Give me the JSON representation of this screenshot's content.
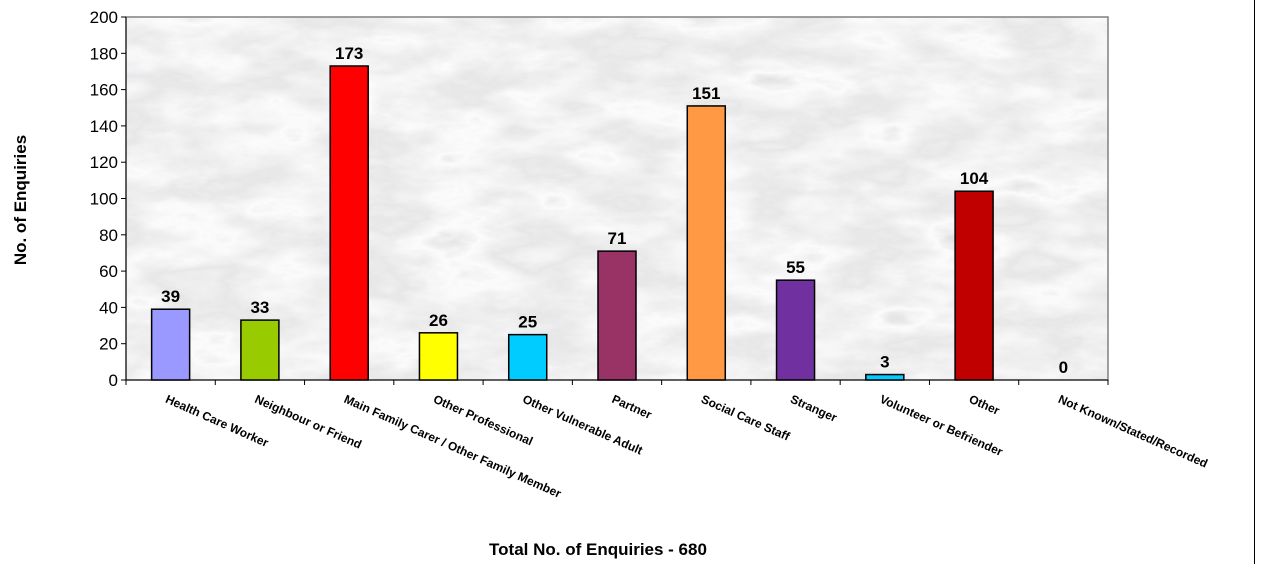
{
  "chart_data": {
    "type": "bar",
    "categories": [
      "Health Care Worker",
      "Neighbour or Friend",
      "Main Family Carer / Other Family Member",
      "Other Professional",
      "Other Vulnerable Adult",
      "Partner",
      "Social Care Staff",
      "Stranger",
      "Volunteer or Befriender",
      "Other",
      "Not Known/Stated/Recorded"
    ],
    "values": [
      39,
      33,
      173,
      26,
      25,
      71,
      151,
      55,
      3,
      104,
      0
    ],
    "colors": [
      "#9999ff",
      "#99cc00",
      "#ff0000",
      "#ffff00",
      "#00ccff",
      "#993366",
      "#ff9944",
      "#7030a0",
      "#00ccff",
      "#c00000",
      "#ffffff"
    ],
    "ylabel": "No. of Enquiries",
    "xlabel": "Total No. of Enquiries - 680",
    "ylim": [
      0,
      200
    ],
    "yticks": [
      0,
      20,
      40,
      60,
      80,
      100,
      120,
      140,
      160,
      180,
      200
    ],
    "grid": false,
    "legend": "none",
    "plot_background": "grey marble texture"
  }
}
